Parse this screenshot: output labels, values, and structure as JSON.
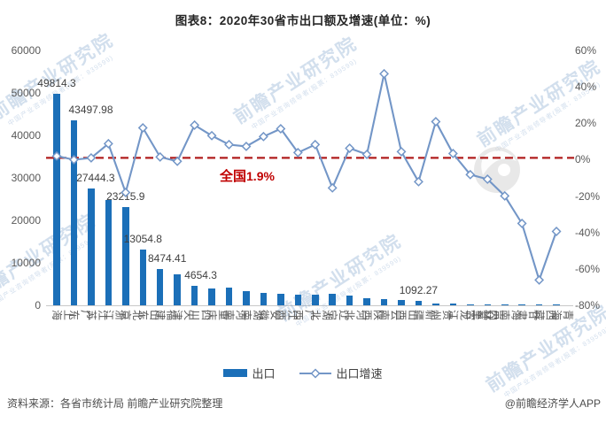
{
  "title": "图表8：2020年30省市出口额及增速(单位：%)",
  "chart_data": {
    "type": "bar+line",
    "title": "图表8：2020年30省市出口额及增速(单位：%)",
    "legend": [
      "出口",
      "出口增速"
    ],
    "legend_position": "bottom",
    "grid": false,
    "left_axis": {
      "min": 0,
      "max": 60000,
      "step": 10000,
      "ticks": [
        "0",
        "10000",
        "20000",
        "30000",
        "40000",
        "50000",
        "60000"
      ]
    },
    "right_axis": {
      "min": -80,
      "max": 60,
      "step": 20,
      "ticks": [
        "-80%",
        "-60%",
        "-40%",
        "-20%",
        "0%",
        "20%",
        "40%",
        "60%"
      ]
    },
    "reference_line": {
      "value_pct": 0,
      "style": "dashed",
      "color": "#B01E1E",
      "label_prefix": "全国",
      "label_value": "1.9%"
    },
    "categories": [
      "上海",
      "广东",
      "江苏",
      "浙江",
      "北京",
      "山东",
      "福建",
      "天津",
      "四川",
      "重庆",
      "河南",
      "湖南",
      "安徽",
      "江西",
      "广西",
      "湖北",
      "辽宁",
      "河北",
      "陕西",
      "云南",
      "山西",
      "新疆",
      "贵州",
      "黑龙江",
      "内蒙古",
      "吉林",
      "海南",
      "甘肃",
      "西藏",
      "青海"
    ],
    "provinces": [
      {
        "name": "上海",
        "export": 49814.3,
        "growth": 1.0,
        "label": "49814.3"
      },
      {
        "name": "广东",
        "export": 43497.98,
        "growth": -1.0,
        "label": "43497.98"
      },
      {
        "name": "江苏",
        "export": 27444.3,
        "growth": 0.0,
        "label": "27444.3"
      },
      {
        "name": "浙江",
        "export": 24800,
        "growth": 7.8,
        "label": null
      },
      {
        "name": "北京",
        "export": 23215.9,
        "growth": -19.0,
        "label": "23215.9"
      },
      {
        "name": "山东",
        "export": 13054.8,
        "growth": 16.5,
        "label": "13054.8"
      },
      {
        "name": "福建",
        "export": 8474.41,
        "growth": 0.5,
        "label": "8474.41"
      },
      {
        "name": "天津",
        "export": 7200,
        "growth": -1.9,
        "label": null
      },
      {
        "name": "四川",
        "export": 4654.3,
        "growth": 18.0,
        "label": "4654.3"
      },
      {
        "name": "重庆",
        "export": 3900,
        "growth": 12.2,
        "label": null
      },
      {
        "name": "河南",
        "export": 4100,
        "growth": 7.3,
        "label": null
      },
      {
        "name": "湖南",
        "export": 3300,
        "growth": 6.3,
        "label": null
      },
      {
        "name": "安徽",
        "export": 2900,
        "growth": 11.7,
        "label": null
      },
      {
        "name": "江西",
        "export": 2750,
        "growth": 16.0,
        "label": null
      },
      {
        "name": "广西",
        "export": 2420,
        "growth": 2.9,
        "label": null
      },
      {
        "name": "湖北",
        "export": 2500,
        "growth": 7.3,
        "label": null
      },
      {
        "name": "辽宁",
        "export": 2700,
        "growth": -16.5,
        "label": null
      },
      {
        "name": "河北",
        "export": 2280,
        "growth": 5.3,
        "label": null
      },
      {
        "name": "陕西",
        "export": 1660,
        "growth": 1.9,
        "label": null
      },
      {
        "name": "云南",
        "export": 1450,
        "growth": 46.2,
        "label": null
      },
      {
        "name": "山西",
        "export": 1240,
        "growth": 3.4,
        "label": null
      },
      {
        "name": "新疆",
        "export": 1092.27,
        "growth": -13.1,
        "label": "1092.27"
      },
      {
        "name": "贵州",
        "export": 480,
        "growth": 19.9,
        "label": null
      },
      {
        "name": "黑龙江",
        "export": 400,
        "growth": 2.4,
        "label": null
      },
      {
        "name": "内蒙古",
        "export": 270,
        "growth": -9.2,
        "label": null
      },
      {
        "name": "吉林",
        "export": 260,
        "growth": -11.7,
        "label": null
      },
      {
        "name": "海南",
        "export": 200,
        "growth": -20.9,
        "label": null
      },
      {
        "name": "甘肃",
        "export": 120,
        "growth": -36.0,
        "label": null
      },
      {
        "name": "西藏",
        "export": 50,
        "growth": -67.1,
        "label": null
      },
      {
        "name": "青海",
        "export": 40,
        "growth": -40.4,
        "label": null
      }
    ]
  },
  "annotation": {
    "prefix": "全国",
    "value": "1.9%"
  },
  "footer": {
    "source": "资料来源：各省市统计局 前瞻产业研究院整理",
    "credit": "@前瞻经济学人APP"
  },
  "watermark": {
    "main": "前瞻产业研究院",
    "sub": "中国产业咨询领导者(股票：839599)"
  },
  "colors": {
    "bar": "#1B6FB8",
    "line": "#7396C7",
    "marker_fill": "#FFFFFF",
    "reference_line": "#B01E1E",
    "annotation": "#C00000",
    "axis_text": "#595959",
    "title_text": "#262626",
    "watermark": "#7EA2CC"
  }
}
